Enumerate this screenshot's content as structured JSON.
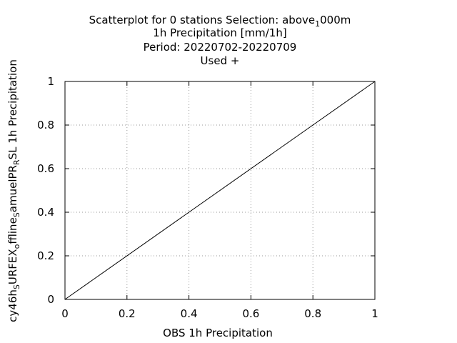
{
  "chart_data": {
    "type": "scatter",
    "title_lines": [
      {
        "parts": [
          {
            "text": "Scatterplot for    0 stations Selection: above"
          },
          {
            "text": "1",
            "sub": true
          },
          {
            "text": "000m"
          }
        ]
      },
      {
        "parts": [
          {
            "text": "1h Precipitation [mm/1h]"
          }
        ]
      },
      {
        "parts": [
          {
            "text": "Period: 20220702-20220709"
          }
        ]
      },
      {
        "parts": [
          {
            "text": "Used   +"
          }
        ]
      }
    ],
    "xlabel": "OBS 1h Precipitation",
    "ylabel_parts": [
      {
        "text": "cy46h"
      },
      {
        "text": "S",
        "sub": true
      },
      {
        "text": "URFEX"
      },
      {
        "text": "o",
        "sub": true
      },
      {
        "text": "ffline"
      },
      {
        "text": "S",
        "sub": true
      },
      {
        "text": "amuelPR"
      },
      {
        "text": "R",
        "sub": true
      },
      {
        "text": "SL 1h Precipitation"
      }
    ],
    "xlim": [
      0,
      1
    ],
    "ylim": [
      0,
      1
    ],
    "xticks": [
      0,
      0.2,
      0.4,
      0.6,
      0.8,
      1
    ],
    "yticks": [
      0,
      0.2,
      0.4,
      0.6,
      0.8,
      1
    ],
    "xtick_labels": [
      "0",
      "0.2",
      "0.4",
      "0.6",
      "0.8",
      "1"
    ],
    "ytick_labels": [
      "0",
      "0.2",
      "0.4",
      "0.6",
      "0.8",
      "1"
    ],
    "grid": true,
    "series": [],
    "reference_line": {
      "x": [
        0,
        1
      ],
      "y": [
        0,
        1
      ],
      "color": "#000000"
    }
  }
}
